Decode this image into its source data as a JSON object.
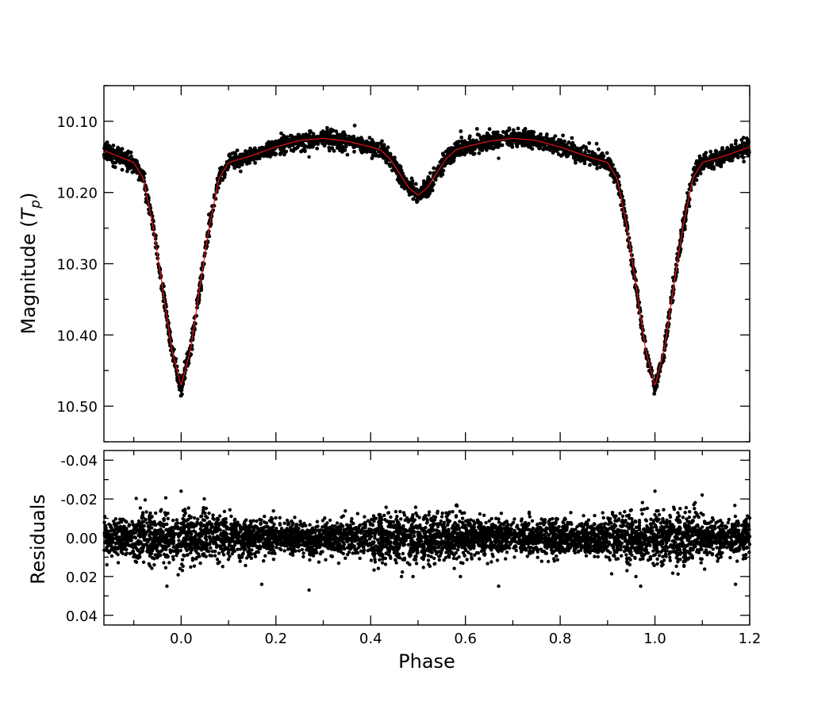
{
  "chart_data": [
    {
      "type": "scatter",
      "panel": "light-curve",
      "title": "",
      "xlabel": "",
      "ylabel_main": "Magnitude (",
      "ylabel_symbol": "T",
      "ylabel_subscript": "p",
      "ylabel_close": ")",
      "xlim": [
        -0.163,
        1.2
      ],
      "ylim": [
        10.55,
        10.05
      ],
      "y_inverted": true,
      "yticks": [
        10.1,
        10.2,
        10.3,
        10.4,
        10.5
      ],
      "ytick_labels": [
        "10.10",
        "10.20",
        "10.30",
        "10.40",
        "10.50"
      ],
      "grid": false,
      "series": [
        {
          "kind": "observations",
          "color": "#000000",
          "marker": "dot",
          "scatter_sigma": 0.006,
          "model_points": [
            [
              -0.163,
              10.141
            ],
            [
              -0.1,
              10.158
            ],
            [
              -0.08,
              10.18
            ],
            [
              -0.06,
              10.245
            ],
            [
              -0.04,
              10.33
            ],
            [
              -0.02,
              10.42
            ],
            [
              0.0,
              10.472
            ],
            [
              0.02,
              10.42
            ],
            [
              0.04,
              10.33
            ],
            [
              0.06,
              10.245
            ],
            [
              0.08,
              10.18
            ],
            [
              0.1,
              10.158
            ],
            [
              0.15,
              10.148
            ],
            [
              0.2,
              10.136
            ],
            [
              0.25,
              10.127
            ],
            [
              0.3,
              10.124
            ],
            [
              0.35,
              10.128
            ],
            [
              0.4,
              10.136
            ],
            [
              0.42,
              10.14
            ],
            [
              0.44,
              10.152
            ],
            [
              0.46,
              10.172
            ],
            [
              0.48,
              10.193
            ],
            [
              0.5,
              10.204
            ],
            [
              0.52,
              10.193
            ],
            [
              0.54,
              10.172
            ],
            [
              0.56,
              10.152
            ],
            [
              0.58,
              10.14
            ],
            [
              0.6,
              10.136
            ],
            [
              0.65,
              10.128
            ],
            [
              0.7,
              10.124
            ],
            [
              0.75,
              10.127
            ],
            [
              0.8,
              10.136
            ],
            [
              0.85,
              10.148
            ],
            [
              0.9,
              10.158
            ],
            [
              0.92,
              10.18
            ],
            [
              0.94,
              10.245
            ],
            [
              0.96,
              10.33
            ],
            [
              0.98,
              10.42
            ],
            [
              1.0,
              10.472
            ],
            [
              1.02,
              10.42
            ],
            [
              1.04,
              10.33
            ],
            [
              1.06,
              10.245
            ],
            [
              1.08,
              10.18
            ],
            [
              1.1,
              10.158
            ],
            [
              1.15,
              10.148
            ],
            [
              1.2,
              10.136
            ]
          ],
          "outliers": [
            [
              0.27,
              10.15
            ],
            [
              0.67,
              10.152
            ]
          ]
        },
        {
          "kind": "model",
          "color": "#e8131b",
          "marker": "line"
        }
      ]
    },
    {
      "type": "scatter",
      "panel": "residuals",
      "title": "",
      "xlabel": "Phase",
      "ylabel": "Residuals",
      "xlim": [
        -0.163,
        1.2
      ],
      "ylim": [
        0.045,
        -0.045
      ],
      "y_inverted": true,
      "xticks": [
        0.0,
        0.2,
        0.4,
        0.6,
        0.8,
        1.0,
        1.2
      ],
      "xtick_labels": [
        "0.0",
        "0.2",
        "0.4",
        "0.6",
        "0.8",
        "1.0",
        "1.2"
      ],
      "yticks": [
        -0.04,
        -0.02,
        0.0,
        0.02,
        0.04
      ],
      "ytick_labels": [
        "-0.04",
        "-0.02",
        "0.00",
        "0.02",
        "0.04"
      ],
      "grid": false,
      "series": [
        {
          "kind": "residuals",
          "color": "#000000",
          "marker": "dot",
          "scatter_sigma_out_of_eclipse": 0.0045,
          "scatter_sigma_in_eclipse": 0.0065,
          "outliers": [
            [
              -0.03,
              0.025
            ],
            [
              0.17,
              0.024
            ],
            [
              0.27,
              0.027
            ],
            [
              0.67,
              0.025
            ],
            [
              0.97,
              0.025
            ],
            [
              1.17,
              0.024
            ],
            [
              0.0,
              -0.024
            ],
            [
              1.0,
              -0.024
            ]
          ]
        }
      ]
    }
  ]
}
